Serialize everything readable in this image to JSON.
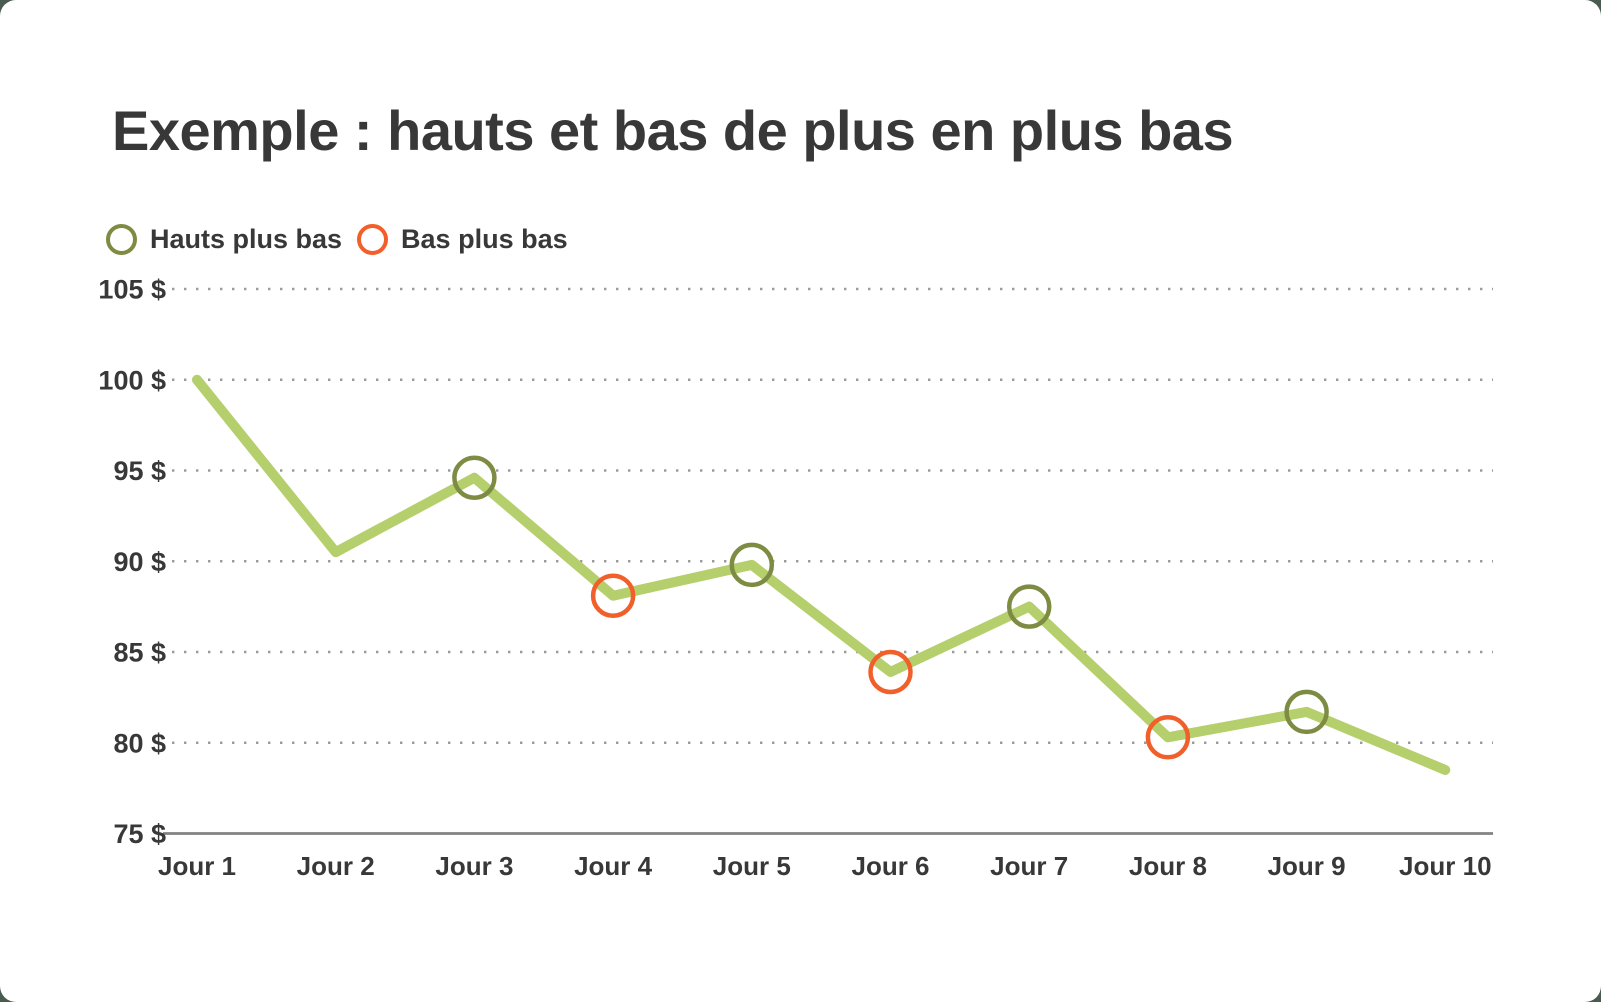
{
  "page": {
    "background_color": "#4a5c4f",
    "card_color": "#ffffff"
  },
  "title": "Exemple : hauts et bas de plus en plus bas",
  "legend": {
    "items": [
      {
        "label": "Hauts plus bas",
        "color": "#7d8c42"
      },
      {
        "label": "Bas plus bas",
        "color": "#f15f2b"
      }
    ]
  },
  "chart_data": {
    "type": "line",
    "title": "Exemple : hauts et bas de plus en plus bas",
    "categories": [
      "Jour 1",
      "Jour 2",
      "Jour 3",
      "Jour 4",
      "Jour 5",
      "Jour 6",
      "Jour 7",
      "Jour 8",
      "Jour 9",
      "Jour 10"
    ],
    "values": [
      100,
      90.5,
      94.6,
      88.1,
      89.8,
      83.9,
      87.5,
      80.3,
      81.7,
      78.5
    ],
    "markers": [
      "none",
      "none",
      "high",
      "low",
      "high",
      "low",
      "high",
      "low",
      "high",
      "none"
    ],
    "marker_legend": {
      "high": "Hauts plus bas",
      "low": "Bas plus bas"
    },
    "y_ticks": [
      {
        "value": 105,
        "label": "105 $"
      },
      {
        "value": 100,
        "label": "100 $"
      },
      {
        "value": 95,
        "label": "95 $"
      },
      {
        "value": 90,
        "label": "90 $"
      },
      {
        "value": 85,
        "label": "85 $"
      },
      {
        "value": 80,
        "label": "80 $"
      },
      {
        "value": 75,
        "label": "75 $",
        "axis": true
      }
    ],
    "ylim": [
      75,
      105
    ],
    "xlabel": "",
    "ylabel": "",
    "grid": "dotted-horizontal",
    "legend_position": "top-left",
    "colors": {
      "line": "#b5cf6d",
      "marker_high": "#7d8c42",
      "marker_low": "#f15f2b",
      "grid": "#9b9b9b",
      "axis": "#828282",
      "text": "#383838"
    }
  }
}
